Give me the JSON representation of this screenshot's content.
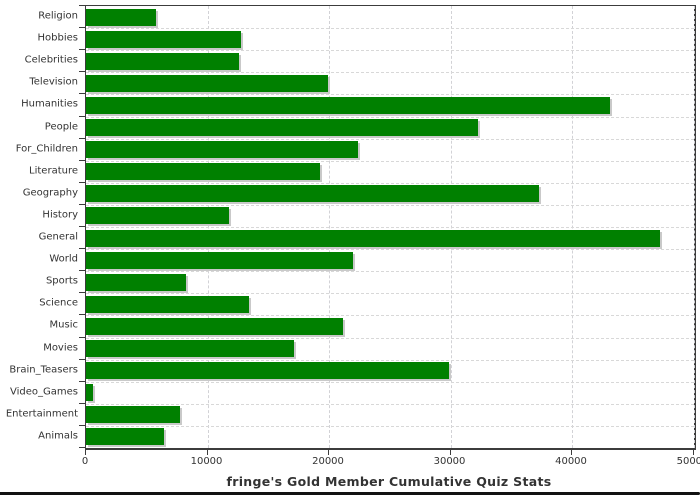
{
  "chart_data": {
    "type": "bar",
    "orientation": "horizontal",
    "title": "fringe's Gold Member Cumulative Quiz Stats",
    "xlabel": "",
    "ylabel": "",
    "xlim": [
      0,
      50000
    ],
    "x_ticks": [
      0,
      10000,
      20000,
      30000,
      40000,
      50000
    ],
    "grid": "dashed vertical at x ticks, dashed horizontal at category boundaries",
    "legend_position": "none",
    "categories": [
      "Religion",
      "Hobbies",
      "Celebrities",
      "Television",
      "Humanities",
      "People",
      "For_Children",
      "Literature",
      "Geography",
      "History",
      "General",
      "World",
      "Sports",
      "Science",
      "Music",
      "Movies",
      "Brain_Teasers",
      "Video_Games",
      "Entertainment",
      "Animals"
    ],
    "values": [
      5800,
      12750,
      12600,
      19900,
      43150,
      32300,
      22350,
      19300,
      37250,
      11750,
      47250,
      22000,
      8250,
      13450,
      21150,
      17150,
      29850,
      550,
      7750,
      6450
    ],
    "colors": {
      "bar": "#008000",
      "bar_shadow": "#c9c9c9",
      "grid": "#d6d6d6",
      "axis": "#3c3c3c",
      "text": "#333333",
      "background": "#ffffff"
    }
  }
}
